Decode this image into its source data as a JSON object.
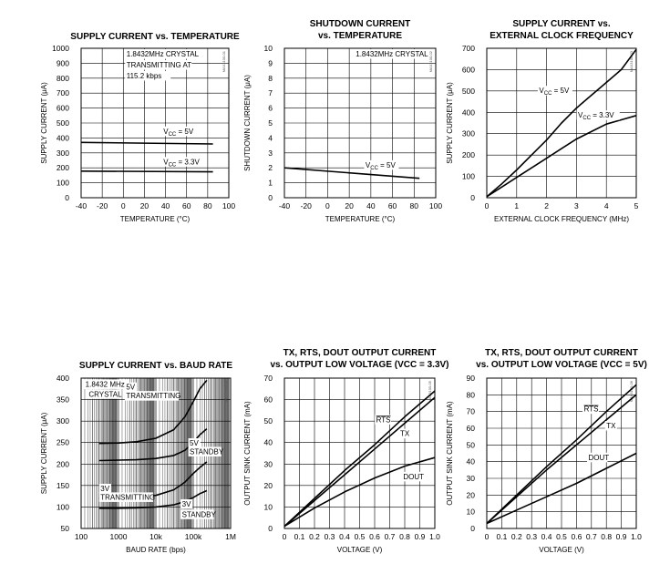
{
  "chart_data": [
    {
      "type": "line",
      "title": [
        "SUPPLY CURRENT vs. TEMPERATURE"
      ],
      "caption": "MAX3100-01",
      "xlabel": "TEMPERATURE (°C)",
      "ylabel": "SUPPLY CURRENT (μA)",
      "xlim": [
        -40,
        100
      ],
      "ylim": [
        0,
        1000
      ],
      "xticks": [
        -40,
        -20,
        0,
        20,
        40,
        60,
        80,
        100
      ],
      "yticks": [
        0,
        100,
        200,
        300,
        400,
        500,
        600,
        700,
        800,
        900,
        1000
      ],
      "series": [
        {
          "name": "VCC = 5V",
          "x": [
            -40,
            85
          ],
          "y": [
            370,
            360
          ]
        },
        {
          "name": "VCC = 3.3V",
          "x": [
            -40,
            85
          ],
          "y": [
            178,
            173
          ]
        }
      ],
      "annotations": [
        {
          "text": "1.8432MHz CRYSTAL",
          "x": 3,
          "y": 945
        },
        {
          "text": "TRANSMITTING AT",
          "x": 3,
          "y": 872
        },
        {
          "text": "115.2 kbps",
          "x": 3,
          "y": 799
        },
        {
          "text": "V",
          "sub": "CC",
          "rest": " = 5V",
          "x": 38,
          "y": 428
        },
        {
          "text": "V",
          "sub": "CC",
          "rest": " = 3.3V",
          "x": 38,
          "y": 224
        }
      ],
      "grid": true
    },
    {
      "type": "line",
      "title": [
        "SHUTDOWN CURRENT",
        "vs. TEMPERATURE"
      ],
      "caption": "MAX3100-02",
      "xlabel": "TEMPERATURE (°C)",
      "ylabel": "SHUTDOWN CURRENT (μA)",
      "xlim": [
        -40,
        100
      ],
      "ylim": [
        0,
        10
      ],
      "xticks": [
        -40,
        -20,
        0,
        20,
        40,
        60,
        80,
        100
      ],
      "yticks": [
        0,
        1,
        2,
        3,
        4,
        5,
        6,
        7,
        8,
        9,
        10
      ],
      "series": [
        {
          "name": "VCC = 5V",
          "x": [
            -40,
            85
          ],
          "y": [
            2.0,
            1.3
          ]
        }
      ],
      "annotations": [
        {
          "text": "1.8432MHz CRYSTAL",
          "x": 26,
          "y": 9.45
        },
        {
          "text": "V",
          "sub": "CC",
          "rest": " = 5V",
          "x": 35,
          "y": 2.02
        }
      ],
      "grid": true
    },
    {
      "type": "line",
      "title": [
        "SUPPLY CURRENT vs.",
        "EXTERNAL CLOCK FREQUENCY"
      ],
      "caption": "MAX3100-03",
      "xlabel": "EXTERNAL CLOCK FREQUENCY (MHz)",
      "ylabel": "SUPPLY CURRENT (μA)",
      "xlim": [
        0,
        5
      ],
      "ylim": [
        0,
        700
      ],
      "xticks": [
        0,
        1,
        2,
        3,
        4,
        5
      ],
      "yticks": [
        0,
        100,
        200,
        300,
        400,
        500,
        600,
        700
      ],
      "series": [
        {
          "name": "VCC = 5V",
          "x": [
            0,
            0.5,
            1,
            1.5,
            2,
            2.5,
            3,
            3.5,
            4,
            4.5,
            5
          ],
          "y": [
            5,
            65,
            130,
            200,
            270,
            350,
            420,
            480,
            540,
            600,
            695
          ]
        },
        {
          "name": "VCC = 3.3V",
          "x": [
            0,
            0.5,
            1,
            1.5,
            2,
            2.5,
            3,
            3.5,
            4,
            4.5,
            5
          ],
          "y": [
            5,
            50,
            95,
            140,
            185,
            230,
            275,
            310,
            345,
            365,
            385
          ]
        }
      ],
      "annotations": [
        {
          "text": "V",
          "sub": "CC",
          "rest": " = 5V",
          "x": 1.75,
          "y": 490
        },
        {
          "text": "V",
          "sub": "CC",
          "rest": " = 3.3V",
          "x": 3.05,
          "y": 375
        }
      ],
      "grid": true
    },
    {
      "type": "line",
      "title": [
        "SUPPLY CURRENT vs. BAUD RATE"
      ],
      "caption": "MAX3100-04",
      "xlabel": "BAUD RATE (bps)",
      "ylabel": "SUPPLY CURRENT (μA)",
      "xscale": "log",
      "xlim": [
        100,
        1000000
      ],
      "ylim": [
        50,
        400
      ],
      "xticks": [
        100,
        1000,
        10000,
        100000,
        1000000
      ],
      "xticklabels": [
        "100",
        "1000",
        "10k",
        "100k",
        "1M"
      ],
      "yticks": [
        50,
        100,
        150,
        200,
        250,
        300,
        350,
        400
      ],
      "series": [
        {
          "name": "5V TRANSMITTING",
          "x": [
            300,
            1000,
            3000,
            10000,
            30000,
            60000,
            100000,
            150000,
            230400
          ],
          "y": [
            248,
            249,
            252,
            260,
            280,
            310,
            345,
            375,
            395
          ]
        },
        {
          "name": "5V STANDBY",
          "x": [
            300,
            1000,
            3000,
            10000,
            30000,
            60000,
            100000,
            150000,
            230400
          ],
          "y": [
            208,
            209,
            210,
            213,
            220,
            232,
            250,
            268,
            282
          ]
        },
        {
          "name": "3V TRANSMITTING",
          "x": [
            300,
            1000,
            3000,
            10000,
            30000,
            60000,
            100000,
            150000,
            230400
          ],
          "y": [
            120,
            121,
            123,
            127,
            140,
            158,
            178,
            192,
            205
          ]
        },
        {
          "name": "3V STANDBY",
          "x": [
            300,
            1000,
            3000,
            10000,
            30000,
            60000,
            100000,
            150000,
            230400
          ],
          "y": [
            97,
            97,
            98,
            100,
            105,
            113,
            122,
            131,
            138
          ]
        }
      ],
      "annotations": [
        {
          "text": "1.8432 MHz",
          "x": 130,
          "y": 380
        },
        {
          "text": "CRYSTAL",
          "x": 160,
          "y": 357
        },
        {
          "text": "5V",
          "x": 1600,
          "y": 373
        },
        {
          "text": "TRANSMITTING",
          "x": 1600,
          "y": 353
        },
        {
          "text": "5V",
          "x": 80000,
          "y": 243
        },
        {
          "text": "STANDBY",
          "x": 80000,
          "y": 223
        },
        {
          "text": "3V",
          "x": 330,
          "y": 137
        },
        {
          "text": "TRANSMITTING",
          "x": 330,
          "y": 117
        },
        {
          "text": "3V",
          "x": 50000,
          "y": 101
        },
        {
          "text": "STANDBY",
          "x": 50000,
          "y": 77
        }
      ],
      "grid": true
    },
    {
      "type": "line",
      "title": [
        "TX, RTS, DOUT OUTPUT CURRENT",
        "vs. OUTPUT LOW VOLTAGE (VCC = 3.3V)"
      ],
      "caption": "MAX3100-05",
      "xlabel": "VOLTAGE (V)",
      "ylabel": "OUTPUT SINK CURRENT (mA)",
      "xlim": [
        0,
        1.0
      ],
      "ylim": [
        0,
        70
      ],
      "xticks": [
        0,
        0.1,
        0.2,
        0.3,
        0.4,
        0.5,
        0.6,
        0.7,
        0.8,
        0.9,
        1.0
      ],
      "xticklabels": [
        "0",
        "0.1",
        "0.2",
        "0.3",
        "0.4",
        "0.5",
        "0.6",
        "0.7",
        "0.8",
        "0.9",
        "1.0"
      ],
      "yticks": [
        0,
        10,
        20,
        30,
        40,
        50,
        60,
        70
      ],
      "series": [
        {
          "name": "RTS",
          "x": [
            0,
            0.2,
            0.4,
            0.6,
            0.8,
            1.0
          ],
          "y": [
            1,
            14,
            27,
            39,
            52,
            64
          ]
        },
        {
          "name": "TX",
          "x": [
            0,
            0.2,
            0.4,
            0.6,
            0.8,
            1.0
          ],
          "y": [
            1,
            13,
            25,
            37,
            49,
            61
          ]
        },
        {
          "name": "DOUT",
          "x": [
            0,
            0.2,
            0.4,
            0.6,
            0.8,
            1.0
          ],
          "y": [
            1,
            9.5,
            17,
            23.5,
            29,
            33
          ]
        }
      ],
      "annotations": [
        {
          "text": "RTS",
          "overline": true,
          "x": 0.61,
          "y": 49.5
        },
        {
          "text": "TX",
          "x": 0.77,
          "y": 43
        },
        {
          "text": "DOUT",
          "x": 0.79,
          "y": 23
        }
      ],
      "grid": true
    },
    {
      "type": "line",
      "title": [
        "TX, RTS, DOUT OUTPUT CURRENT",
        "vs. OUTPUT LOW VOLTAGE (VCC = 5V)"
      ],
      "caption": "MAX3100-06",
      "xlabel": "VOLTAGE (V)",
      "ylabel": "OUTPUT SINK CURRENT (mA)",
      "xlim": [
        0,
        1.0
      ],
      "ylim": [
        0,
        90
      ],
      "xticks": [
        0,
        0.1,
        0.2,
        0.3,
        0.4,
        0.5,
        0.6,
        0.7,
        0.8,
        0.9,
        1.0
      ],
      "xticklabels": [
        "0",
        "0.1",
        "0.2",
        "0.3",
        "0.4",
        "0.5",
        "0.6",
        "0.7",
        "0.8",
        "0.9",
        "1.0"
      ],
      "yticks": [
        0,
        10,
        20,
        30,
        40,
        50,
        60,
        70,
        80,
        90
      ],
      "series": [
        {
          "name": "RTS",
          "x": [
            0,
            0.2,
            0.4,
            0.6,
            0.8,
            1.0
          ],
          "y": [
            3,
            20,
            37,
            53,
            70,
            86
          ]
        },
        {
          "name": "TX",
          "x": [
            0,
            0.2,
            0.4,
            0.6,
            0.8,
            1.0
          ],
          "y": [
            3,
            19,
            35,
            50,
            65,
            80
          ]
        },
        {
          "name": "DOUT",
          "x": [
            0,
            0.2,
            0.4,
            0.6,
            0.8,
            1.0
          ],
          "y": [
            3,
            11,
            19,
            27,
            36,
            45
          ]
        }
      ],
      "annotations": [
        {
          "text": "RTS",
          "overline": true,
          "x": 0.65,
          "y": 70
        },
        {
          "text": "TX",
          "x": 0.8,
          "y": 60
        },
        {
          "text": "DOUT",
          "x": 0.68,
          "y": 41
        }
      ],
      "grid": true
    }
  ]
}
